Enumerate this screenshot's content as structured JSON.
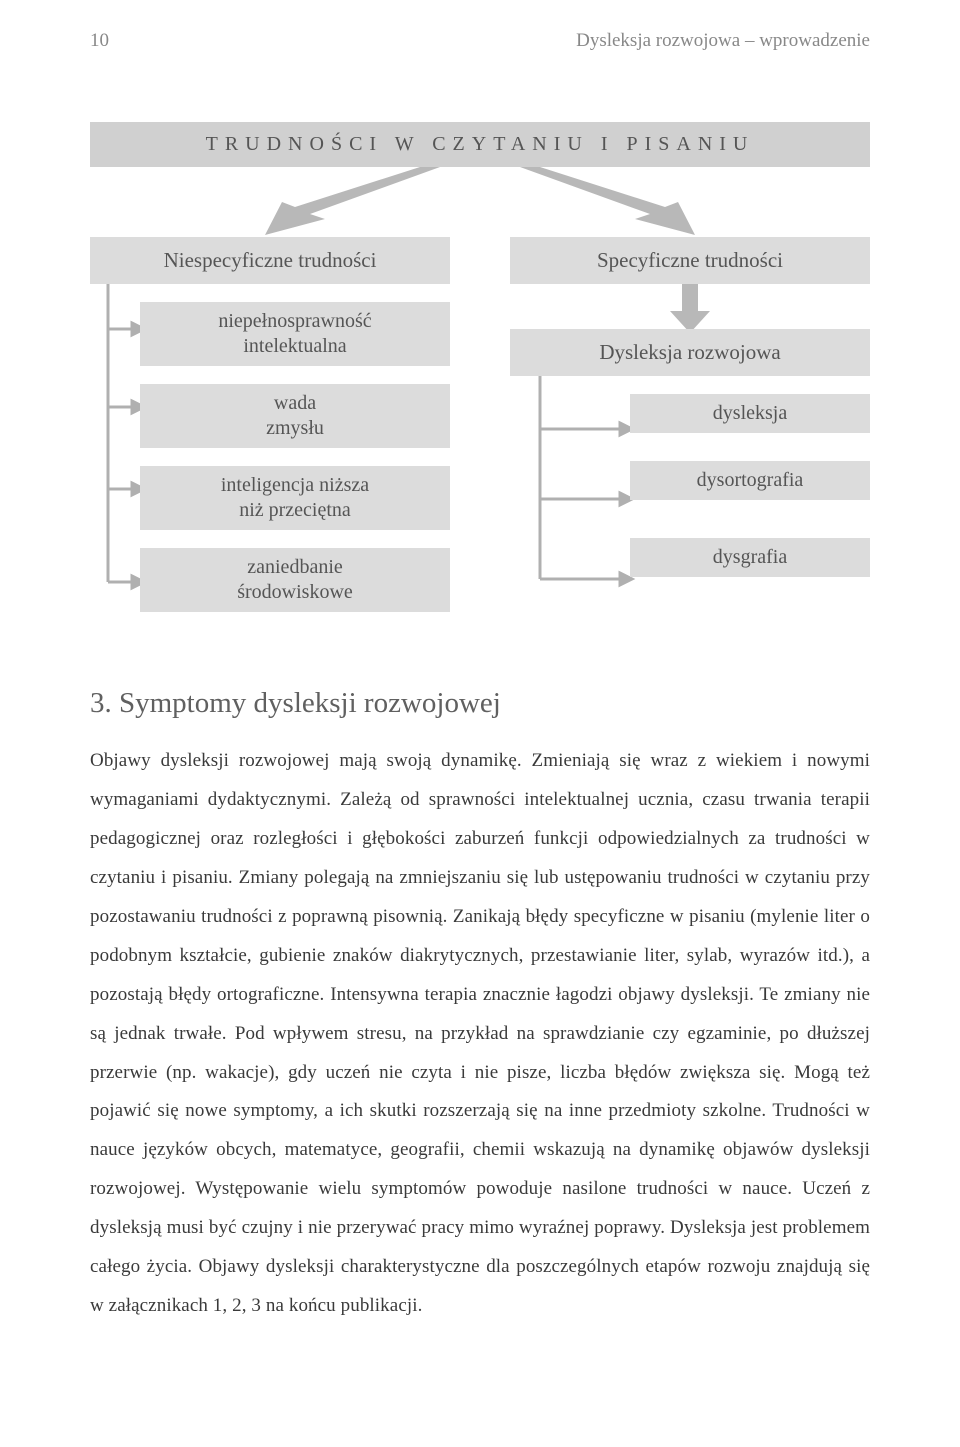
{
  "header": {
    "page_num": "10",
    "chapter_title": "Dysleksja rozwojowa – wprowadzenie"
  },
  "diagram": {
    "title": "TRUDNOŚCI W CZYTANIU I PISANIU",
    "left": {
      "category": "Niespecyficzne trudności",
      "items": [
        "niepełnosprawność\nintelektualna",
        "wada\nzmysłu",
        "inteligencja niższa\nniż przeciętna",
        "zaniedbanie\nśrodowiskowe"
      ]
    },
    "right": {
      "category": "Specyficzne trudności",
      "mid": "Dysleksja rozwojowa",
      "items": [
        "dysleksja",
        "dysortografia",
        "dysgrafia"
      ]
    },
    "colors": {
      "box_bg": "#dcdcdc",
      "top_box_bg": "#d0d0d0",
      "arrow_fill": "#b8b8b8",
      "line_color": "#b0b0b0",
      "text_color": "#555555"
    }
  },
  "section": {
    "num": "3.",
    "title": "Symptomy dysleksji rozwojowej"
  },
  "body": "Objawy dysleksji rozwojowej mają swoją dynamikę. Zmieniają się wraz z wiekiem i nowymi wymaganiami dydaktycznymi. Zależą od sprawności intelektualnej ucznia, czasu trwania terapii pedagogicznej oraz rozległości i głębokości zaburzeń funkcji odpowiedzialnych za trudności w czytaniu i pisaniu. Zmiany polegają na zmniejszaniu się lub ustępowaniu trudności w czytaniu przy pozostawaniu trudności z poprawną pisownią. Zanikają błędy specyficzne w pisaniu (mylenie liter o podobnym kształcie, gubienie znaków diakrytycznych, przestawianie liter, sylab, wyrazów itd.), a pozostają błędy ortograficzne. Intensywna terapia znacznie łagodzi objawy dysleksji. Te zmiany nie są jednak trwałe. Pod wpływem stresu, na przykład na sprawdzianie czy egzaminie, po dłuższej przerwie (np. wakacje), gdy uczeń nie czyta i nie pisze, liczba błędów zwiększa się. Mogą też pojawić się nowe symptomy, a ich skutki rozszerzają się na inne przedmioty szkolne. Trudności w nauce języków obcych, matematyce, geografii, chemii wskazują na dynamikę objawów dysleksji rozwojowej. Występowanie wielu symptomów powoduje nasilone trudności w nauce. Uczeń z dysleksją musi być czujny i nie przerywać pracy mimo wyraźnej poprawy. Dysleksja jest problemem całego życia. Objawy dysleksji charakterystyczne dla poszczególnych etapów rozwoju znajdują się w załącznikach 1, 2, 3 na końcu publikacji."
}
